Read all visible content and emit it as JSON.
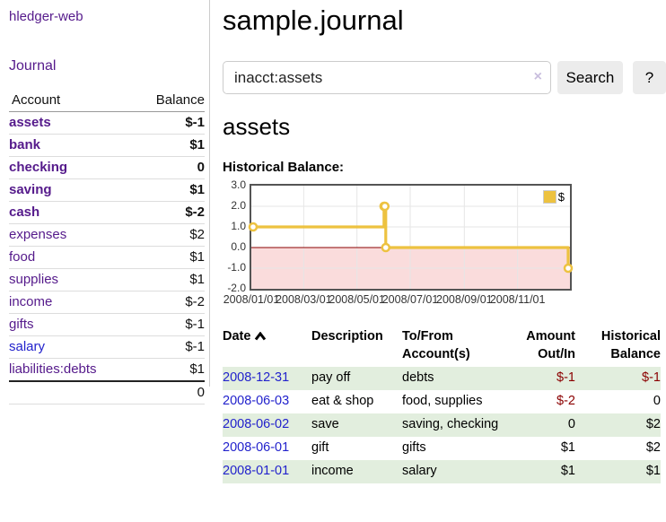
{
  "sidebar": {
    "brand": "hledger-web",
    "journal_link": "Journal",
    "accounts": {
      "header_account": "Account",
      "header_balance": "Balance",
      "rows": [
        {
          "name": "assets",
          "balance": "$-1"
        },
        {
          "name": "bank",
          "balance": "$1"
        },
        {
          "name": "checking",
          "balance": "0"
        },
        {
          "name": "saving",
          "balance": "$1"
        },
        {
          "name": "cash",
          "balance": "$-2"
        },
        {
          "name": "expenses",
          "balance": "$2"
        },
        {
          "name": "food",
          "balance": "$1"
        },
        {
          "name": "supplies",
          "balance": "$1"
        },
        {
          "name": "income",
          "balance": "$-2"
        },
        {
          "name": "gifts",
          "balance": "$-1"
        },
        {
          "name": "salary",
          "balance": "$-1"
        },
        {
          "name": "liabilities:debts",
          "balance": "$1"
        }
      ],
      "total": "0"
    }
  },
  "main": {
    "title": "sample.journal",
    "search": {
      "value": "inacct:assets",
      "clear": "×",
      "search_button": "Search",
      "help_button": "?"
    },
    "account_heading": "assets",
    "chart_title": "Historical Balance:"
  },
  "chart_data": {
    "type": "line",
    "step": true,
    "title": "Historical Balance of assets",
    "x_type": "date",
    "xlim": [
      "2008-01-01",
      "2008-12-31"
    ],
    "ylim": [
      -2,
      3
    ],
    "x_ticks": [
      "2008/01/01",
      "2008/03/01",
      "2008/05/01",
      "2008/07/01",
      "2008/09/01",
      "2008/11/01"
    ],
    "y_ticks": [
      "3.0",
      "2.0",
      "1.0",
      "0.0",
      "-1.0",
      "-2.0"
    ],
    "legend": "$",
    "legend_position": "top-right",
    "grid": true,
    "series": [
      {
        "name": "$",
        "color": "#edc240",
        "marker": "circle",
        "points": [
          [
            "2008-01-01",
            1
          ],
          [
            "2008-06-01",
            2
          ],
          [
            "2008-06-02",
            2
          ],
          [
            "2008-06-03",
            0
          ],
          [
            "2008-12-31",
            -1
          ]
        ]
      }
    ],
    "negative_fill_color": "#fadcdc",
    "zero_line_color": "#8b0000"
  },
  "register": {
    "headers": {
      "date": "Date",
      "description": "Description",
      "accounts": "To/From Account(s)",
      "amount": "Amount Out/In",
      "balance": "Historical Balance"
    },
    "rows": [
      {
        "date": "2008-12-31",
        "description": "pay off",
        "accounts": "debts",
        "amount": "$-1",
        "balance": "$-1"
      },
      {
        "date": "2008-06-03",
        "description": "eat & shop",
        "accounts": "food, supplies",
        "amount": "$-2",
        "balance": "0"
      },
      {
        "date": "2008-06-02",
        "description": "save",
        "accounts": "saving, checking",
        "amount": "0",
        "balance": "$2"
      },
      {
        "date": "2008-06-01",
        "description": "gift",
        "accounts": "gifts",
        "amount": "$1",
        "balance": "$2"
      },
      {
        "date": "2008-01-01",
        "description": "income",
        "accounts": "salary",
        "amount": "$1",
        "balance": "$1"
      }
    ]
  }
}
